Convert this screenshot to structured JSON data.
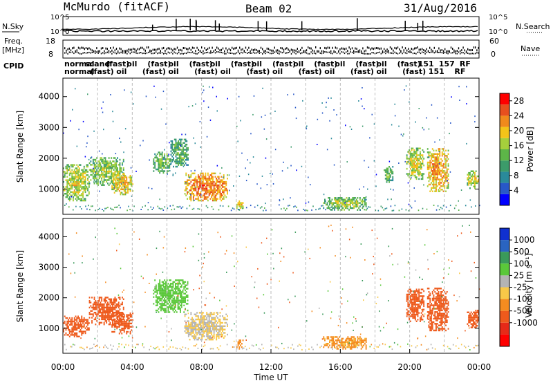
{
  "header": {
    "station": "McMurdo (fitACF)",
    "beam": "Beam 02",
    "date": "31/Aug/2016"
  },
  "strip_labels": {
    "nsky": "N.Sky",
    "nsearch": "N.Search",
    "freq_line1": "Freq.",
    "freq_line2": "[MHz]",
    "nave": "Nave",
    "cpid": "CPID",
    "nsky_tick_top": "10^5",
    "nsky_tick_bot": "10^0",
    "freq_tick_top": "18",
    "freq_tick_bot": "8",
    "nave_tick_top": "60",
    "nave_tick_bot": "0"
  },
  "cpid_labels": {
    "row1": [
      "normal",
      "scand",
      "(fast)",
      "oil",
      "(fast)",
      "oil",
      "(fast)",
      "oil",
      "(fast)",
      "oil",
      "(fast)",
      "oil",
      "(fast)",
      "oil",
      "(fast)",
      "oil",
      "(fast)",
      "151",
      "157",
      "RF"
    ],
    "row2": [
      "normal",
      "(fast)",
      "oil",
      "(fast)",
      "oil",
      "(fast)",
      "oil",
      "(fast)",
      "oil",
      "(fast)",
      "oil",
      "(fast)",
      "oil",
      "(fast)",
      "151",
      "RF"
    ]
  },
  "chart_data": [
    {
      "type": "heatmap",
      "panel": "power",
      "ylabel": "Slant Range [km]",
      "xlabel": "Time UT",
      "x_ticks": [
        "00:00",
        "04:00",
        "08:00",
        "12:00",
        "16:00",
        "20:00",
        "00:00"
      ],
      "x_range_hours": [
        0,
        24
      ],
      "ylim": [
        180,
        4600
      ],
      "y_ticks": [
        1000,
        2000,
        3000,
        4000
      ],
      "colorbar": {
        "label": "Power [dB]",
        "ticks": [
          4,
          8,
          12,
          16,
          20,
          24,
          28
        ],
        "range": [
          0,
          30
        ],
        "colors": [
          "#0000ff",
          "#2858c8",
          "#2a8a9a",
          "#3c9b6a",
          "#5db548",
          "#a6cf3c",
          "#f3c419",
          "#f08a1c",
          "#e7501e",
          "#ff0000"
        ]
      },
      "echo_regions": [
        {
          "t_start": 0.0,
          "t_end": 1.5,
          "r_min": 600,
          "r_max": 1800,
          "value": 14
        },
        {
          "t_start": 1.5,
          "t_end": 3.5,
          "r_min": 1100,
          "r_max": 2000,
          "value": 12
        },
        {
          "t_start": 2.8,
          "t_end": 4.0,
          "r_min": 800,
          "r_max": 1500,
          "value": 16
        },
        {
          "t_start": 5.2,
          "t_end": 6.2,
          "r_min": 1500,
          "r_max": 2200,
          "value": 10
        },
        {
          "t_start": 6.2,
          "t_end": 7.2,
          "r_min": 1700,
          "r_max": 2600,
          "value": 9
        },
        {
          "t_start": 7.0,
          "t_end": 9.5,
          "r_min": 600,
          "r_max": 1500,
          "value": 20
        },
        {
          "t_start": 10.0,
          "t_end": 10.4,
          "r_min": 300,
          "r_max": 600,
          "value": 14
        },
        {
          "t_start": 15.0,
          "t_end": 17.5,
          "r_min": 300,
          "r_max": 700,
          "value": 12
        },
        {
          "t_start": 18.5,
          "t_end": 19.0,
          "r_min": 1200,
          "r_max": 1700,
          "value": 10
        },
        {
          "t_start": 19.8,
          "t_end": 20.8,
          "r_min": 1300,
          "r_max": 2300,
          "value": 14
        },
        {
          "t_start": 21.0,
          "t_end": 22.2,
          "r_min": 900,
          "r_max": 2300,
          "value": 18
        },
        {
          "t_start": 23.3,
          "t_end": 24.0,
          "r_min": 1000,
          "r_max": 1600,
          "value": 14
        }
      ]
    },
    {
      "type": "heatmap",
      "panel": "velocity",
      "ylabel": "Slant Range [km]",
      "xlabel": "Time UT",
      "x_ticks": [
        "00:00",
        "04:00",
        "08:00",
        "12:00",
        "16:00",
        "20:00",
        "00:00"
      ],
      "x_range_hours": [
        0,
        24
      ],
      "ylim": [
        180,
        4600
      ],
      "y_ticks": [
        1000,
        2000,
        3000,
        4000
      ],
      "colorbar": {
        "label": "Velocity [m s⁻¹]",
        "ticks": [
          1000,
          500,
          100,
          25,
          -25,
          -100,
          -500,
          -1000
        ],
        "colors": [
          "#1030d0",
          "#2a64c0",
          "#3a9a5a",
          "#5ac83a",
          "#b4b4b4",
          "#f8c848",
          "#f48c20",
          "#ee5a1c",
          "#e62a18",
          "#ff0000"
        ]
      },
      "echo_regions": [
        {
          "t_start": 0.0,
          "t_end": 1.5,
          "r_min": 700,
          "r_max": 1400,
          "value": -300
        },
        {
          "t_start": 1.5,
          "t_end": 3.5,
          "r_min": 1100,
          "r_max": 2000,
          "value": -200
        },
        {
          "t_start": 2.8,
          "t_end": 4.0,
          "r_min": 800,
          "r_max": 1500,
          "value": -250
        },
        {
          "t_start": 5.2,
          "t_end": 7.2,
          "r_min": 1500,
          "r_max": 2600,
          "value": 60
        },
        {
          "t_start": 7.0,
          "t_end": 9.5,
          "r_min": 600,
          "r_max": 1500,
          "value": 0
        },
        {
          "t_start": 10.0,
          "t_end": 10.4,
          "r_min": 300,
          "r_max": 600,
          "value": -60
        },
        {
          "t_start": 15.0,
          "t_end": 17.5,
          "r_min": 300,
          "r_max": 700,
          "value": -40
        },
        {
          "t_start": 19.8,
          "t_end": 20.8,
          "r_min": 1200,
          "r_max": 2300,
          "value": -300
        },
        {
          "t_start": 21.0,
          "t_end": 22.2,
          "r_min": 900,
          "r_max": 2300,
          "value": -300
        },
        {
          "t_start": 23.3,
          "t_end": 24.0,
          "r_min": 1000,
          "r_max": 1600,
          "value": -300
        }
      ]
    }
  ]
}
